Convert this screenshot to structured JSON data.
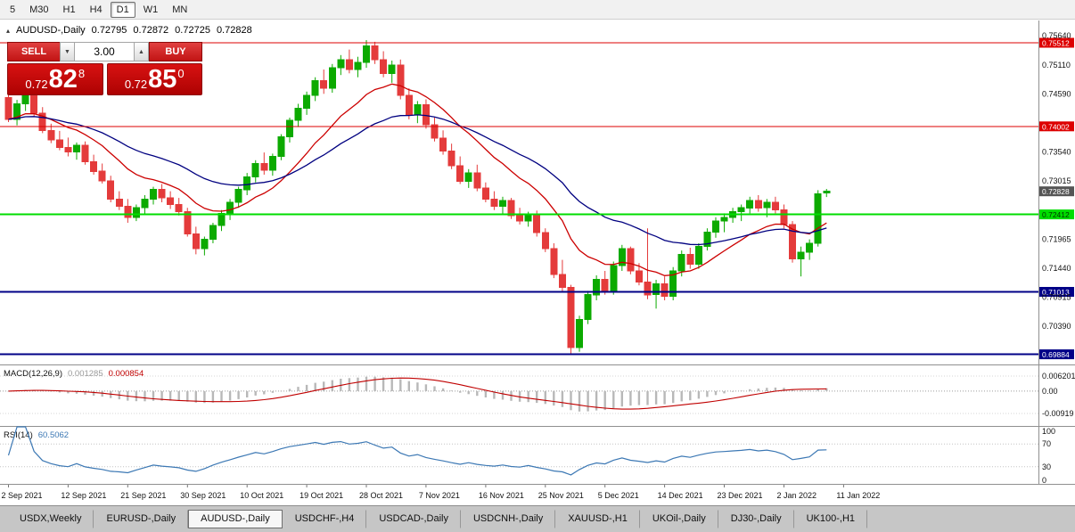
{
  "toolbar": {
    "timeframes": [
      {
        "label": "5",
        "active": false
      },
      {
        "label": "M30",
        "active": false
      },
      {
        "label": "H1",
        "active": false
      },
      {
        "label": "H4",
        "active": false
      },
      {
        "label": "D1",
        "active": true
      },
      {
        "label": "W1",
        "active": false
      },
      {
        "label": "MN",
        "active": false
      }
    ]
  },
  "chart_header": {
    "marker": "▴",
    "symbol": "AUDUSD-,Daily",
    "open": "0.72795",
    "high": "0.72872",
    "low": "0.72725",
    "close": "0.72828"
  },
  "trade_panel": {
    "sell_label": "SELL",
    "buy_label": "BUY",
    "volume": "3.00",
    "spin_down_glyph": "▼",
    "spin_up_glyph": "▲",
    "sell_price": {
      "prefix": "0.72",
      "big": "82",
      "sup": "8"
    },
    "buy_price": {
      "prefix": "0.72",
      "big": "85",
      "sup": "0"
    }
  },
  "bottom_tabs": [
    {
      "label": "USDX,Weekly",
      "active": false
    },
    {
      "label": "EURUSD-,Daily",
      "active": false
    },
    {
      "label": "AUDUSD-,Daily",
      "active": true
    },
    {
      "label": "USDCHF-,H4",
      "active": false
    },
    {
      "label": "USDCAD-,Daily",
      "active": false
    },
    {
      "label": "USDCNH-,Daily",
      "active": false
    },
    {
      "label": "XAUUSD-,H1",
      "active": false
    },
    {
      "label": "UKOil-,Daily",
      "active": false
    },
    {
      "label": "DJ30-,Daily",
      "active": false
    },
    {
      "label": "UK100-,H1",
      "active": false
    }
  ],
  "chart_data": [
    {
      "type": "candlestick",
      "title": "AUDUSD-,Daily",
      "ohlc_display": [
        "0.72795",
        "0.72872",
        "0.72725",
        "0.72828"
      ],
      "ylim": [
        0.697,
        0.75915
      ],
      "up_color": "#0caa00",
      "down_color": "#e43b3b",
      "axis_labels": [
        "0.75640",
        "0.75110",
        "0.74590",
        "0.73540",
        "0.73015",
        "0.71965",
        "0.71440",
        "0.70915",
        "0.70390"
      ],
      "hlines": [
        {
          "value": 0.75512,
          "label": "0.75512",
          "color": "#dd0000",
          "width": 1,
          "label_text": "#ffffff"
        },
        {
          "value": 0.74002,
          "label": "0.74002",
          "color": "#dd0000",
          "width": 1,
          "label_text": "#ffffff"
        },
        {
          "value": 0.72412,
          "label": "0.72412",
          "color": "#00dd00",
          "width": 2,
          "label_text": "#003000"
        },
        {
          "value": 0.71013,
          "label": "0.71013",
          "color": "#000087",
          "width": 2,
          "label_text": "#ffffff"
        },
        {
          "value": 0.69884,
          "label": "0.69884",
          "color": "#000087",
          "width": 2,
          "label_text": "#ffffff"
        }
      ],
      "current_price": {
        "value": 0.72828,
        "label": "0.72828",
        "color": "#555555"
      },
      "x_labels": [
        "2 Sep 2021",
        "12 Sep 2021",
        "21 Sep 2021",
        "30 Sep 2021",
        "10 Oct 2021",
        "19 Oct 2021",
        "28 Oct 2021",
        "7 Nov 2021",
        "16 Nov 2021",
        "25 Nov 2021",
        "5 Dec 2021",
        "14 Dec 2021",
        "23 Dec 2021",
        "2 Jan 2022",
        "11 Jan 2022"
      ],
      "x_label_step": 7,
      "ma_fast": {
        "period": 13,
        "color": "#cc0000"
      },
      "ma_slow": {
        "period": 30,
        "color": "#000080"
      },
      "candles": [
        [
          0.7452,
          0.7468,
          0.7408,
          0.7413
        ],
        [
          0.7413,
          0.7448,
          0.7402,
          0.7441
        ],
        [
          0.7441,
          0.7465,
          0.7428,
          0.7458
        ],
        [
          0.7458,
          0.7462,
          0.7418,
          0.7424
        ],
        [
          0.7424,
          0.7435,
          0.7388,
          0.7393
        ],
        [
          0.7393,
          0.7405,
          0.737,
          0.7376
        ],
        [
          0.7376,
          0.7392,
          0.7357,
          0.7362
        ],
        [
          0.7362,
          0.738,
          0.7346,
          0.7354
        ],
        [
          0.7354,
          0.7371,
          0.734,
          0.7366
        ],
        [
          0.7366,
          0.7373,
          0.7331,
          0.7336
        ],
        [
          0.7336,
          0.7349,
          0.7313,
          0.7319
        ],
        [
          0.7319,
          0.7333,
          0.7297,
          0.7302
        ],
        [
          0.7302,
          0.7311,
          0.7263,
          0.7269
        ],
        [
          0.7269,
          0.7283,
          0.7249,
          0.7256
        ],
        [
          0.7256,
          0.7269,
          0.7226,
          0.7236
        ],
        [
          0.7236,
          0.7259,
          0.7229,
          0.7253
        ],
        [
          0.7253,
          0.7276,
          0.7241,
          0.7269
        ],
        [
          0.7269,
          0.7291,
          0.7259,
          0.7286
        ],
        [
          0.7286,
          0.7296,
          0.7263,
          0.7271
        ],
        [
          0.7271,
          0.7283,
          0.7251,
          0.7259
        ],
        [
          0.7259,
          0.7271,
          0.7239,
          0.7246
        ],
        [
          0.7246,
          0.7253,
          0.7201,
          0.7206
        ],
        [
          0.7206,
          0.7219,
          0.7169,
          0.7179
        ],
        [
          0.7179,
          0.7201,
          0.7167,
          0.7196
        ],
        [
          0.7196,
          0.7226,
          0.7189,
          0.7221
        ],
        [
          0.7221,
          0.7249,
          0.7211,
          0.7243
        ],
        [
          0.7243,
          0.7269,
          0.7231,
          0.7263
        ],
        [
          0.7263,
          0.7291,
          0.7253,
          0.7286
        ],
        [
          0.7286,
          0.7316,
          0.7276,
          0.7309
        ],
        [
          0.7309,
          0.7339,
          0.7299,
          0.7333
        ],
        [
          0.7333,
          0.7353,
          0.7313,
          0.7321
        ],
        [
          0.7321,
          0.7351,
          0.7311,
          0.7346
        ],
        [
          0.7346,
          0.7386,
          0.7339,
          0.7381
        ],
        [
          0.7381,
          0.7416,
          0.7371,
          0.7411
        ],
        [
          0.7411,
          0.7441,
          0.7399,
          0.7433
        ],
        [
          0.7433,
          0.7463,
          0.7421,
          0.7456
        ],
        [
          0.7456,
          0.7489,
          0.7446,
          0.7483
        ],
        [
          0.7483,
          0.7503,
          0.7459,
          0.7469
        ],
        [
          0.7469,
          0.7513,
          0.7461,
          0.7506
        ],
        [
          0.7506,
          0.7529,
          0.7493,
          0.7521
        ],
        [
          0.7521,
          0.7539,
          0.7496,
          0.7503
        ],
        [
          0.7503,
          0.7526,
          0.7489,
          0.7516
        ],
        [
          0.7516,
          0.7556,
          0.7506,
          0.7546
        ],
        [
          0.7546,
          0.7553,
          0.7513,
          0.7521
        ],
        [
          0.7521,
          0.7536,
          0.7489,
          0.7496
        ],
        [
          0.7496,
          0.7519,
          0.7479,
          0.7511
        ],
        [
          0.7511,
          0.7521,
          0.7449,
          0.7456
        ],
        [
          0.7456,
          0.7469,
          0.7413,
          0.7421
        ],
        [
          0.7421,
          0.7446,
          0.7406,
          0.7439
        ],
        [
          0.7439,
          0.7449,
          0.7396,
          0.7403
        ],
        [
          0.7403,
          0.7416,
          0.7373,
          0.7379
        ],
        [
          0.7379,
          0.7393,
          0.7349,
          0.7356
        ],
        [
          0.7356,
          0.7369,
          0.7323,
          0.7329
        ],
        [
          0.7329,
          0.7346,
          0.7296,
          0.7301
        ],
        [
          0.7301,
          0.7323,
          0.7289,
          0.7316
        ],
        [
          0.7316,
          0.7331,
          0.7283,
          0.7289
        ],
        [
          0.7289,
          0.7299,
          0.7263,
          0.7269
        ],
        [
          0.7269,
          0.7283,
          0.7249,
          0.7256
        ],
        [
          0.7256,
          0.7273,
          0.7241,
          0.7266
        ],
        [
          0.7266,
          0.7271,
          0.7233,
          0.7239
        ],
        [
          0.7239,
          0.7253,
          0.7223,
          0.7229
        ],
        [
          0.7229,
          0.7246,
          0.7219,
          0.7241
        ],
        [
          0.7241,
          0.7248,
          0.7201,
          0.7208
        ],
        [
          0.7208,
          0.7216,
          0.7173,
          0.7179
        ],
        [
          0.7179,
          0.7189,
          0.7126,
          0.7133
        ],
        [
          0.7133,
          0.7159,
          0.7102,
          0.7109
        ],
        [
          0.7109,
          0.7114,
          0.6989,
          0.7001
        ],
        [
          0.7001,
          0.7058,
          0.6993,
          0.7051
        ],
        [
          0.7051,
          0.7103,
          0.7043,
          0.7096
        ],
        [
          0.7096,
          0.7131,
          0.7086,
          0.7124
        ],
        [
          0.7124,
          0.7139,
          0.7096,
          0.7103
        ],
        [
          0.7103,
          0.7156,
          0.7096,
          0.7149
        ],
        [
          0.7149,
          0.7186,
          0.7139,
          0.7179
        ],
        [
          0.7179,
          0.7183,
          0.7133,
          0.7139
        ],
        [
          0.7139,
          0.7153,
          0.7113,
          0.7119
        ],
        [
          0.7119,
          0.7216,
          0.7088,
          0.7096
        ],
        [
          0.7096,
          0.7123,
          0.7071,
          0.7116
        ],
        [
          0.7116,
          0.7129,
          0.7086,
          0.7093
        ],
        [
          0.7093,
          0.7146,
          0.7086,
          0.7139
        ],
        [
          0.7139,
          0.7176,
          0.7129,
          0.7169
        ],
        [
          0.7169,
          0.7181,
          0.7143,
          0.7151
        ],
        [
          0.7151,
          0.7189,
          0.7143,
          0.7183
        ],
        [
          0.7183,
          0.7216,
          0.7176,
          0.7209
        ],
        [
          0.7209,
          0.7236,
          0.7199,
          0.7229
        ],
        [
          0.7229,
          0.7243,
          0.7209,
          0.7236
        ],
        [
          0.7236,
          0.7253,
          0.7226,
          0.7246
        ],
        [
          0.7246,
          0.7259,
          0.7229,
          0.7253
        ],
        [
          0.7253,
          0.7273,
          0.7243,
          0.7266
        ],
        [
          0.7266,
          0.7276,
          0.7246,
          0.7253
        ],
        [
          0.7253,
          0.7269,
          0.7236,
          0.7263
        ],
        [
          0.7263,
          0.7273,
          0.7243,
          0.7249
        ],
        [
          0.7249,
          0.7259,
          0.7216,
          0.7223
        ],
        [
          0.7223,
          0.7229,
          0.7154,
          0.7161
        ],
        [
          0.7161,
          0.7183,
          0.7129,
          0.7173
        ],
        [
          0.7173,
          0.7196,
          0.7159,
          0.7189
        ],
        [
          0.7189,
          0.7285,
          0.7183,
          0.7278
        ],
        [
          0.72795,
          0.72872,
          0.72725,
          0.72828
        ]
      ]
    },
    {
      "type": "macd",
      "label": "MACD(12,26,9)",
      "values_display": [
        "0.001285",
        "0.000854"
      ],
      "params": [
        12,
        26,
        9
      ],
      "ylim": [
        -0.0143,
        0.0106
      ],
      "axis_labels": [
        {
          "value": 0.006201,
          "label": "0.006201"
        },
        {
          "value": 0.0,
          "label": "0.00"
        },
        {
          "value": -0.00919,
          "label": "-0.00919"
        }
      ],
      "histogram_color": "#b8b8b8",
      "signal_color": "#c00000"
    },
    {
      "type": "line",
      "label": "RSI(14)",
      "value_display": "60.5062",
      "period": 14,
      "ylim": [
        0,
        100
      ],
      "levels": [
        70,
        30
      ],
      "axis_labels": [
        {
          "value": 100,
          "label": "100"
        },
        {
          "value": 70,
          "label": "70"
        },
        {
          "value": 30,
          "label": "30"
        },
        {
          "value": 0,
          "label": "0"
        }
      ],
      "color": "#3c78b4"
    }
  ]
}
